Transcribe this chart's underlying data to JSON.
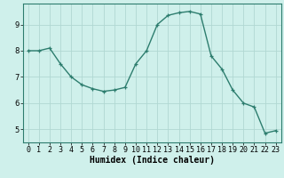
{
  "x": [
    0,
    1,
    2,
    3,
    4,
    5,
    6,
    7,
    8,
    9,
    10,
    11,
    12,
    13,
    14,
    15,
    16,
    17,
    18,
    19,
    20,
    21,
    22,
    23
  ],
  "y": [
    8.0,
    8.0,
    8.1,
    7.5,
    7.0,
    6.7,
    6.55,
    6.45,
    6.5,
    6.6,
    7.5,
    8.0,
    9.0,
    9.35,
    9.45,
    9.5,
    9.4,
    7.8,
    7.3,
    6.5,
    6.0,
    5.85,
    4.85,
    4.95
  ],
  "line_color": "#2d7d6e",
  "marker": "+",
  "marker_size": 3.5,
  "linewidth": 1.0,
  "background_color": "#cff0eb",
  "grid_color": "#b0d8d2",
  "xlabel": "Humidex (Indice chaleur)",
  "xlabel_fontsize": 7,
  "tick_fontsize": 6,
  "ylim": [
    4.5,
    9.8
  ],
  "xlim": [
    -0.5,
    23.5
  ],
  "yticks": [
    5,
    6,
    7,
    8,
    9
  ],
  "xtick_labels": [
    "0",
    "1",
    "2",
    "3",
    "4",
    "5",
    "6",
    "7",
    "8",
    "9",
    "10",
    "11",
    "12",
    "13",
    "14",
    "15",
    "16",
    "17",
    "18",
    "19",
    "20",
    "21",
    "22",
    "23"
  ]
}
